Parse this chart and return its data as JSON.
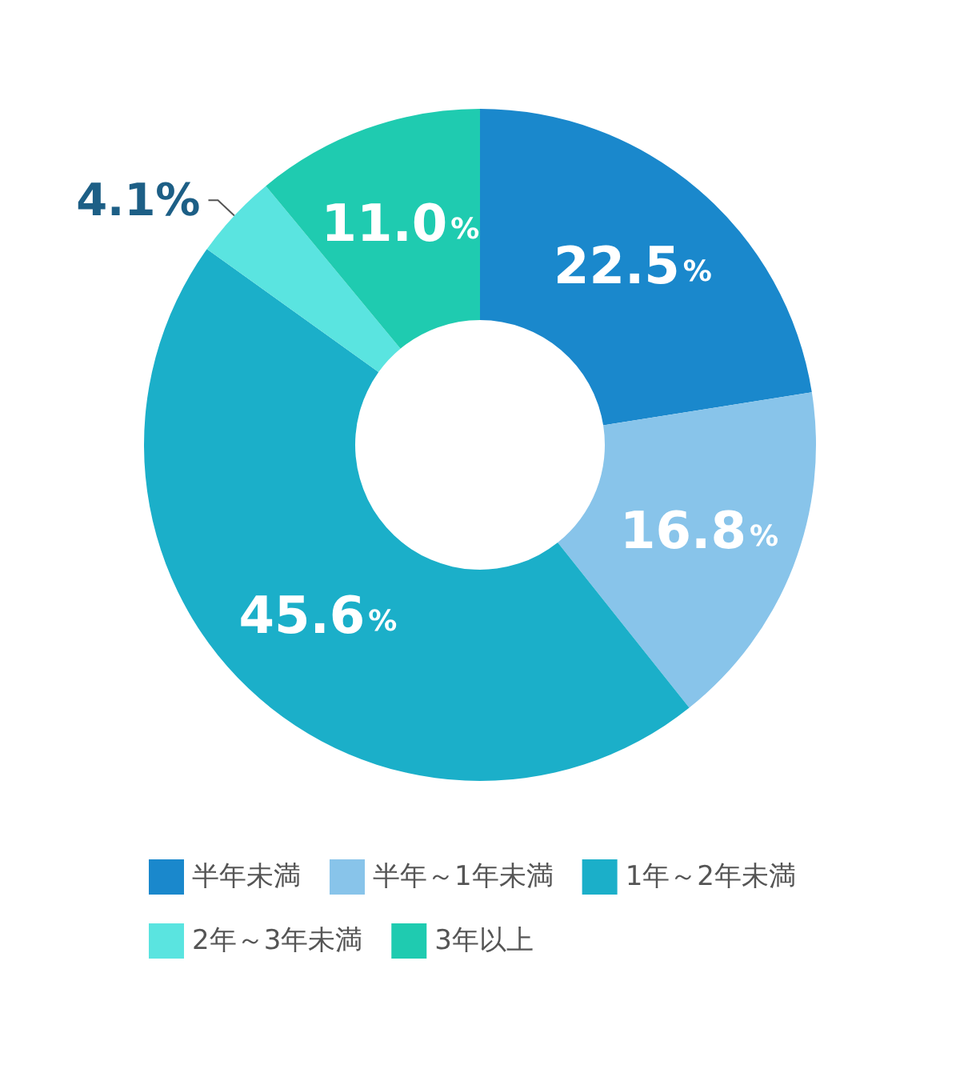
{
  "chart_data": {
    "type": "donut",
    "categories": [
      "半年未満",
      "半年～1年未満",
      "1年～2年未満",
      "2年～3年未満",
      "3年以上"
    ],
    "values": [
      22.5,
      16.8,
      45.6,
      4.1,
      11.0
    ],
    "value_labels": [
      "22.5%",
      "16.8%",
      "45.6%",
      "4.1%",
      "11.0%"
    ],
    "colors": [
      "#1a88cc",
      "#88c4ea",
      "#1bafc9",
      "#5ae4e0",
      "#1fcbb0"
    ],
    "legend": "bottom"
  }
}
